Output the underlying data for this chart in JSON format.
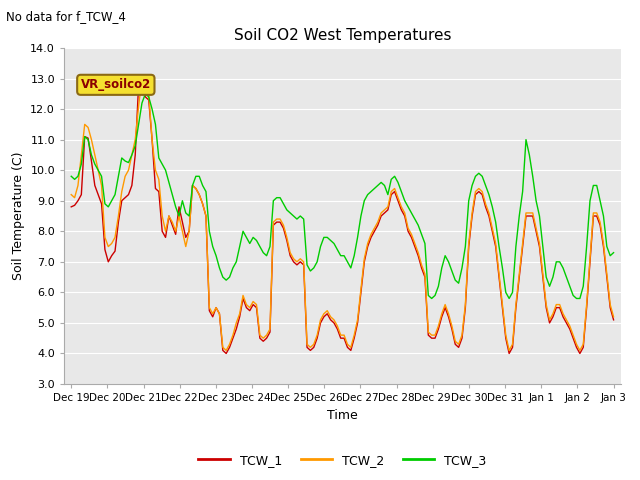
{
  "title": "Soil CO2 West Temperatures",
  "xlabel": "Time",
  "ylabel": "Soil Temperature (C)",
  "ylim": [
    3.0,
    14.0
  ],
  "yticks": [
    3.0,
    4.0,
    5.0,
    6.0,
    7.0,
    8.0,
    9.0,
    10.0,
    11.0,
    12.0,
    13.0,
    14.0
  ],
  "x_tick_labels": [
    "Dec 19",
    "Dec 20",
    "Dec 21",
    "Dec 22",
    "Dec 23",
    "Dec 24",
    "Dec 25",
    "Dec 26",
    "Dec 27",
    "Dec 28",
    "Dec 29",
    "Dec 30",
    "Dec 31",
    "Jan 1",
    "Jan 2",
    "Jan 3"
  ],
  "no_data_text": "No data for f_TCW_4",
  "annotation_text": "VR_soilco2",
  "line_colors": [
    "#cc0000",
    "#ff9900",
    "#00cc00"
  ],
  "line_labels": [
    "TCW_1",
    "TCW_2",
    "TCW_3"
  ],
  "fig_bg_color": "#ffffff",
  "plot_bg_color": "#e8e8e8",
  "grid_color": "#ffffff",
  "TCW_1": [
    8.8,
    8.85,
    9.0,
    9.2,
    11.1,
    11.05,
    10.3,
    9.5,
    9.2,
    8.9,
    7.4,
    7.0,
    7.2,
    7.35,
    8.3,
    9.0,
    9.1,
    9.2,
    9.5,
    10.5,
    12.8,
    12.85,
    12.4,
    12.3,
    11.0,
    9.4,
    9.3,
    8.0,
    7.8,
    8.5,
    8.2,
    7.9,
    8.8,
    8.3,
    7.8,
    8.0,
    9.5,
    9.4,
    9.2,
    8.9,
    8.5,
    5.4,
    5.2,
    5.5,
    5.3,
    4.1,
    4.0,
    4.2,
    4.5,
    4.8,
    5.2,
    5.8,
    5.5,
    5.4,
    5.6,
    5.5,
    4.5,
    4.4,
    4.5,
    4.7,
    8.2,
    8.3,
    8.3,
    8.1,
    7.7,
    7.2,
    7.0,
    6.9,
    7.0,
    6.9,
    4.2,
    4.1,
    4.2,
    4.5,
    5.0,
    5.2,
    5.3,
    5.1,
    5.0,
    4.8,
    4.5,
    4.5,
    4.2,
    4.1,
    4.5,
    5.0,
    6.0,
    7.0,
    7.5,
    7.8,
    8.0,
    8.2,
    8.5,
    8.6,
    8.7,
    9.2,
    9.3,
    9.0,
    8.7,
    8.5,
    8.0,
    7.8,
    7.5,
    7.2,
    6.8,
    6.5,
    4.6,
    4.5,
    4.5,
    4.8,
    5.2,
    5.5,
    5.2,
    4.8,
    4.3,
    4.2,
    4.5,
    5.5,
    7.5,
    8.5,
    9.2,
    9.3,
    9.2,
    8.8,
    8.5,
    8.0,
    7.5,
    6.5,
    5.5,
    4.5,
    4.0,
    4.2,
    5.5,
    6.5,
    7.5,
    8.5,
    8.5,
    8.5,
    8.0,
    7.5,
    6.5,
    5.5,
    5.0,
    5.2,
    5.5,
    5.5,
    5.2,
    5.0,
    4.8,
    4.5,
    4.2,
    4.0,
    4.2,
    5.5,
    7.0,
    8.5,
    8.5,
    8.2,
    7.5,
    6.5,
    5.5,
    5.1
  ],
  "TCW_2": [
    9.2,
    9.1,
    9.5,
    10.5,
    11.5,
    11.4,
    11.0,
    10.5,
    10.0,
    9.5,
    7.8,
    7.5,
    7.6,
    7.8,
    8.5,
    9.3,
    9.8,
    10.0,
    10.5,
    11.0,
    12.1,
    13.0,
    12.9,
    12.5,
    11.0,
    10.0,
    9.7,
    8.5,
    8.0,
    8.5,
    8.3,
    8.0,
    8.5,
    8.0,
    7.5,
    8.0,
    9.5,
    9.4,
    9.2,
    8.9,
    8.5,
    5.5,
    5.3,
    5.5,
    5.3,
    4.2,
    4.1,
    4.3,
    4.6,
    5.0,
    5.3,
    5.9,
    5.6,
    5.5,
    5.7,
    5.6,
    4.6,
    4.5,
    4.6,
    4.8,
    8.3,
    8.4,
    8.4,
    8.2,
    7.8,
    7.3,
    7.1,
    7.0,
    7.1,
    7.0,
    4.3,
    4.2,
    4.3,
    4.6,
    5.1,
    5.3,
    5.4,
    5.2,
    5.1,
    4.9,
    4.6,
    4.6,
    4.3,
    4.2,
    4.6,
    5.1,
    6.1,
    7.1,
    7.6,
    7.9,
    8.1,
    8.3,
    8.6,
    8.7,
    8.8,
    9.3,
    9.4,
    9.1,
    8.8,
    8.6,
    8.1,
    7.9,
    7.6,
    7.3,
    6.9,
    6.6,
    4.7,
    4.6,
    4.6,
    4.9,
    5.3,
    5.6,
    5.3,
    4.9,
    4.4,
    4.3,
    4.6,
    5.6,
    7.6,
    8.6,
    9.3,
    9.4,
    9.3,
    8.9,
    8.6,
    8.1,
    7.6,
    6.6,
    5.6,
    4.6,
    4.1,
    4.3,
    5.6,
    6.6,
    7.6,
    8.6,
    8.6,
    8.6,
    8.1,
    7.6,
    6.6,
    5.6,
    5.1,
    5.3,
    5.6,
    5.6,
    5.3,
    5.1,
    4.9,
    4.6,
    4.3,
    4.1,
    4.3,
    5.6,
    7.1,
    8.6,
    8.6,
    8.3,
    7.6,
    6.6,
    5.6,
    5.2
  ],
  "TCW_3": [
    9.8,
    9.7,
    9.8,
    10.2,
    11.1,
    11.0,
    10.5,
    10.2,
    10.0,
    9.8,
    8.9,
    8.8,
    9.0,
    9.2,
    9.8,
    10.4,
    10.3,
    10.25,
    10.5,
    10.8,
    11.5,
    12.2,
    12.5,
    12.4,
    12.0,
    11.5,
    10.4,
    10.2,
    10.0,
    9.6,
    9.2,
    8.8,
    8.5,
    9.0,
    8.6,
    8.5,
    9.5,
    9.8,
    9.8,
    9.5,
    9.3,
    8.0,
    7.5,
    7.2,
    6.8,
    6.5,
    6.4,
    6.5,
    6.8,
    7.0,
    7.5,
    8.0,
    7.8,
    7.6,
    7.8,
    7.7,
    7.5,
    7.3,
    7.2,
    7.5,
    9.0,
    9.1,
    9.1,
    8.9,
    8.7,
    8.6,
    8.5,
    8.4,
    8.5,
    8.4,
    6.9,
    6.7,
    6.8,
    7.0,
    7.5,
    7.8,
    7.8,
    7.7,
    7.6,
    7.4,
    7.2,
    7.2,
    7.0,
    6.8,
    7.2,
    7.8,
    8.5,
    9.0,
    9.2,
    9.3,
    9.4,
    9.5,
    9.6,
    9.5,
    9.2,
    9.7,
    9.8,
    9.6,
    9.3,
    9.0,
    8.8,
    8.6,
    8.4,
    8.2,
    7.9,
    7.6,
    5.9,
    5.8,
    5.9,
    6.2,
    6.8,
    7.2,
    7.0,
    6.7,
    6.4,
    6.3,
    6.8,
    7.5,
    9.0,
    9.5,
    9.8,
    9.9,
    9.8,
    9.5,
    9.2,
    8.8,
    8.3,
    7.5,
    6.8,
    6.0,
    5.8,
    6.0,
    7.5,
    8.5,
    9.3,
    11.0,
    10.5,
    9.8,
    9.0,
    8.5,
    7.5,
    6.5,
    6.2,
    6.5,
    7.0,
    7.0,
    6.8,
    6.5,
    6.2,
    5.9,
    5.8,
    5.8,
    6.2,
    7.5,
    9.0,
    9.5,
    9.5,
    9.0,
    8.5,
    7.5,
    7.2,
    7.3
  ]
}
